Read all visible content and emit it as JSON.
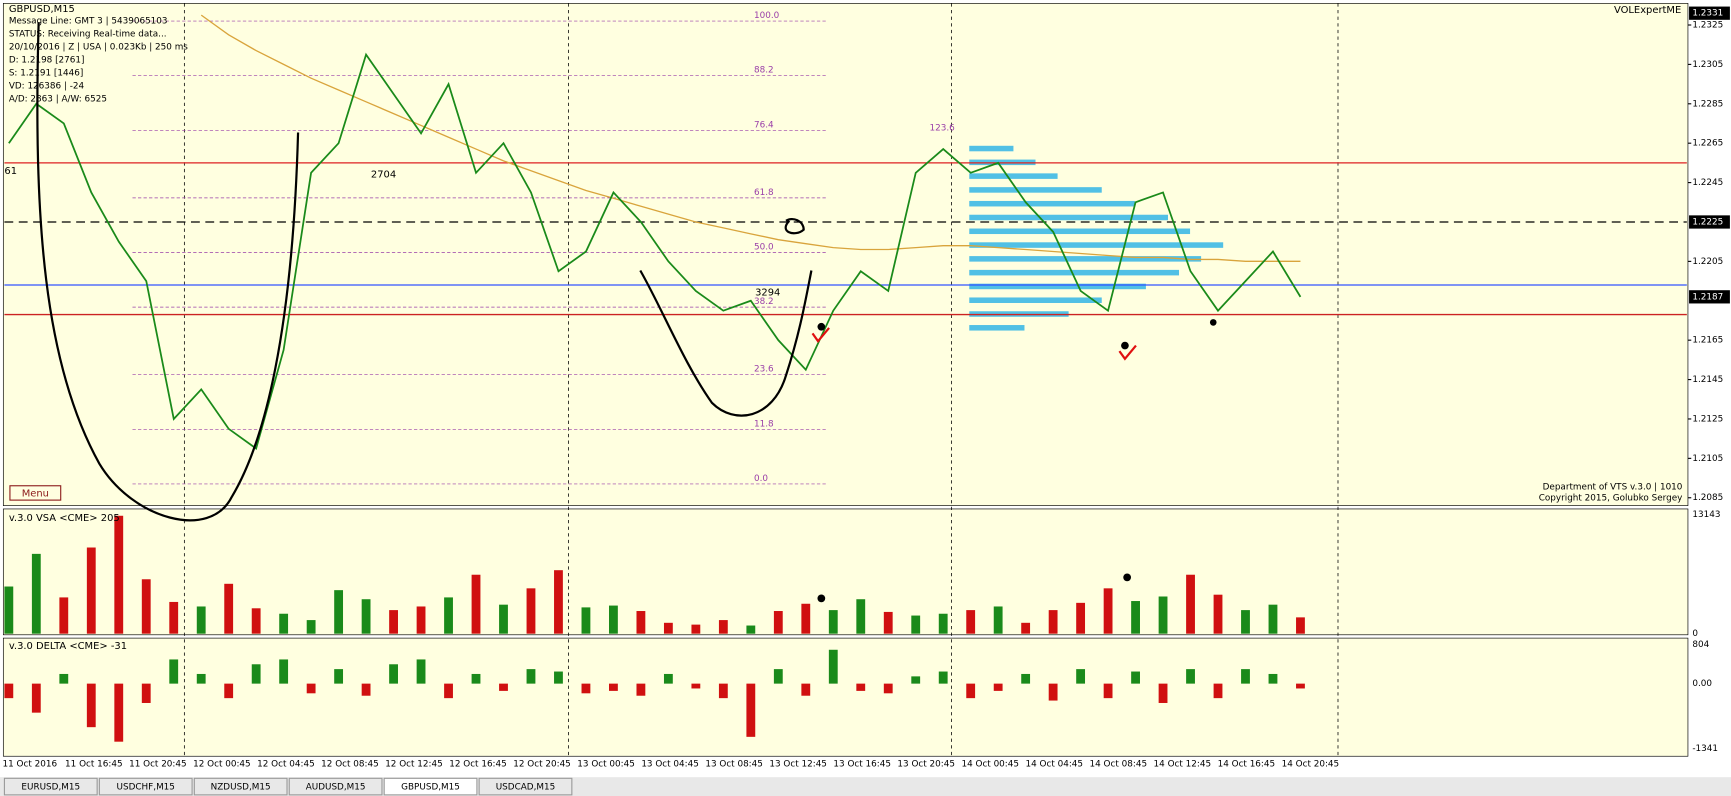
{
  "window": {
    "symbol": "GBPUSD,M15",
    "info_lines": [
      "Message Line: GMT 3 | 5439065103",
      "STATUS:  Receiving Real-time data...",
      "20/10/2016 | Z | USA | 0.023Kb | 250 ms",
      "D: 1.2198 [2761]",
      "S: 1.2191 [1446]",
      "VD: 126386 | -24",
      "A/D: 2863 | A/W: 6525"
    ],
    "expert": "VOLExpertME",
    "menu": "Menu",
    "footer": [
      "Department of VTS  v.3.0 | 1010",
      "Copyright 2015, Golubko Sergey"
    ],
    "tabs": [
      "EURUSD,M15",
      "USDCHF,M15",
      "NZDUSD,M15",
      "AUDUSD,M15",
      "GBPUSD,M15",
      "USDCAD,M15"
    ],
    "active_tab": 4
  },
  "chart_data": {
    "type": "line",
    "categories": [
      "11 Oct 2016",
      "11 Oct 16:45",
      "11 Oct 20:45",
      "12 Oct 00:45",
      "12 Oct 04:45",
      "12 Oct 08:45",
      "12 Oct 12:45",
      "12 Oct 16:45",
      "12 Oct 20:45",
      "13 Oct 00:45",
      "13 Oct 04:45",
      "13 Oct 08:45",
      "13 Oct 12:45",
      "13 Oct 16:45",
      "13 Oct 20:45",
      "14 Oct 00:45",
      "14 Oct 04:45",
      "14 Oct 08:45",
      "14 Oct 12:45",
      "14 Oct 16:45",
      "14 Oct 20:45"
    ],
    "price": {
      "color": "#1a8a1a",
      "values": [
        1.2265,
        1.2285,
        1.2275,
        1.224,
        1.2215,
        1.2195,
        1.2125,
        1.214,
        1.212,
        1.211,
        1.216,
        1.225,
        1.2265,
        1.231,
        1.229,
        1.227,
        1.2295,
        1.225,
        1.2265,
        1.224,
        1.22,
        1.221,
        1.224,
        1.2225,
        1.2205,
        1.219,
        1.218,
        1.2185,
        1.2165,
        1.215,
        1.218,
        1.22,
        1.219,
        1.225,
        1.2262,
        1.225,
        1.2255,
        1.2235,
        1.222,
        1.219,
        1.218,
        1.2235,
        1.224,
        1.22,
        1.218,
        1.2195,
        1.221,
        1.2187
      ]
    },
    "moving_average": {
      "color": "#d9a43c",
      "values": [
        null,
        null,
        null,
        null,
        null,
        null,
        null,
        1.233,
        1.232,
        1.2312,
        1.2305,
        1.2298,
        1.2292,
        1.2286,
        1.228,
        1.2274,
        1.2268,
        1.2262,
        1.2256,
        1.2251,
        1.2246,
        1.2241,
        1.2237,
        1.2233,
        1.2229,
        1.2225,
        1.2222,
        1.2219,
        1.2216,
        1.2214,
        1.2212,
        1.2211,
        1.2211,
        1.2212,
        1.2213,
        1.2213,
        1.2212,
        1.2211,
        1.221,
        1.2209,
        1.2208,
        1.2207,
        1.2207,
        1.2206,
        1.2206,
        1.2205,
        1.2205,
        1.2205
      ]
    },
    "ylim": [
      1.2081,
      1.2336
    ],
    "yticks": [
      1.2085,
      1.2105,
      1.2125,
      1.2145,
      1.2165,
      1.2205,
      1.2245,
      1.2265,
      1.2285,
      1.2305,
      1.2325
    ],
    "price_markers": [
      1.2331,
      1.2225,
      1.2187
    ],
    "levels": [
      {
        "value": 1.2225,
        "color": "#000000",
        "dashed": true
      },
      {
        "value": 1.2193,
        "color": "#3355ff",
        "dashed": false
      },
      {
        "value": 1.2178,
        "color": "#cc2222",
        "dashed": false
      },
      {
        "value": 1.2255,
        "color": "#dd2222",
        "dashed": false
      }
    ],
    "fib": {
      "low": 1.2092,
      "high": 1.2327,
      "color": "#9a3fa8",
      "levels": [
        {
          "value": 100,
          "label": "100.0"
        },
        88.2,
        76.4,
        61.8,
        {
          "value": 50,
          "label": "50.0"
        },
        38.2,
        23.6,
        11.8,
        {
          "value": 0,
          "label": "0.0"
        }
      ]
    },
    "annotations": [
      "2704",
      "3294",
      "61",
      "123.6"
    ],
    "volume_profile": {
      "color": "#33b5e5",
      "prices": [
        1.2262,
        1.2255,
        1.2248,
        1.2241,
        1.2234,
        1.2227,
        1.222,
        1.2213,
        1.2206,
        1.2199,
        1.2192,
        1.2185,
        1.2178,
        1.2171
      ],
      "values": [
        40,
        60,
        80,
        120,
        150,
        180,
        200,
        230,
        210,
        190,
        160,
        120,
        90,
        50
      ]
    },
    "up_color": "#1a8a1a",
    "down_color": "#d01010",
    "volume": {
      "title": "v.3.0 VSA <CME> 205",
      "ylim": [
        0,
        13143
      ],
      "yticks": [
        0,
        13143
      ],
      "values": [
        5200,
        8800,
        4000,
        9500,
        13000,
        6000,
        3500,
        3000,
        5500,
        2800,
        2200,
        1500,
        4800,
        3800,
        2600,
        3000,
        4000,
        6500,
        3200,
        5000,
        7000,
        2900,
        3100,
        2500,
        1200,
        1000,
        1500,
        900,
        2500,
        3300,
        2600,
        3800,
        2400,
        2000,
        2200,
        2600,
        3000,
        1200,
        2600,
        3400,
        5000,
        3600,
        4100,
        6500,
        4300,
        2600,
        3200,
        1800
      ]
    },
    "delta": {
      "title": "v.3.0 DELTA <CME> -31",
      "ylim": [
        -1341,
        804
      ],
      "yticks": [
        -1341,
        {
          "value": 0,
          "label": "0.00"
        },
        804
      ],
      "values": [
        -300,
        -600,
        200,
        -900,
        -1200,
        -400,
        500,
        200,
        -300,
        400,
        500,
        -200,
        300,
        -250,
        400,
        500,
        -300,
        200,
        -150,
        300,
        250,
        -200,
        -150,
        -250,
        200,
        -100,
        -300,
        -1100,
        300,
        -250,
        700,
        -150,
        -200,
        150,
        250,
        -300,
        -150,
        200,
        -350,
        300,
        -300,
        250,
        -400,
        300,
        -300,
        300,
        200,
        -100
      ]
    }
  }
}
